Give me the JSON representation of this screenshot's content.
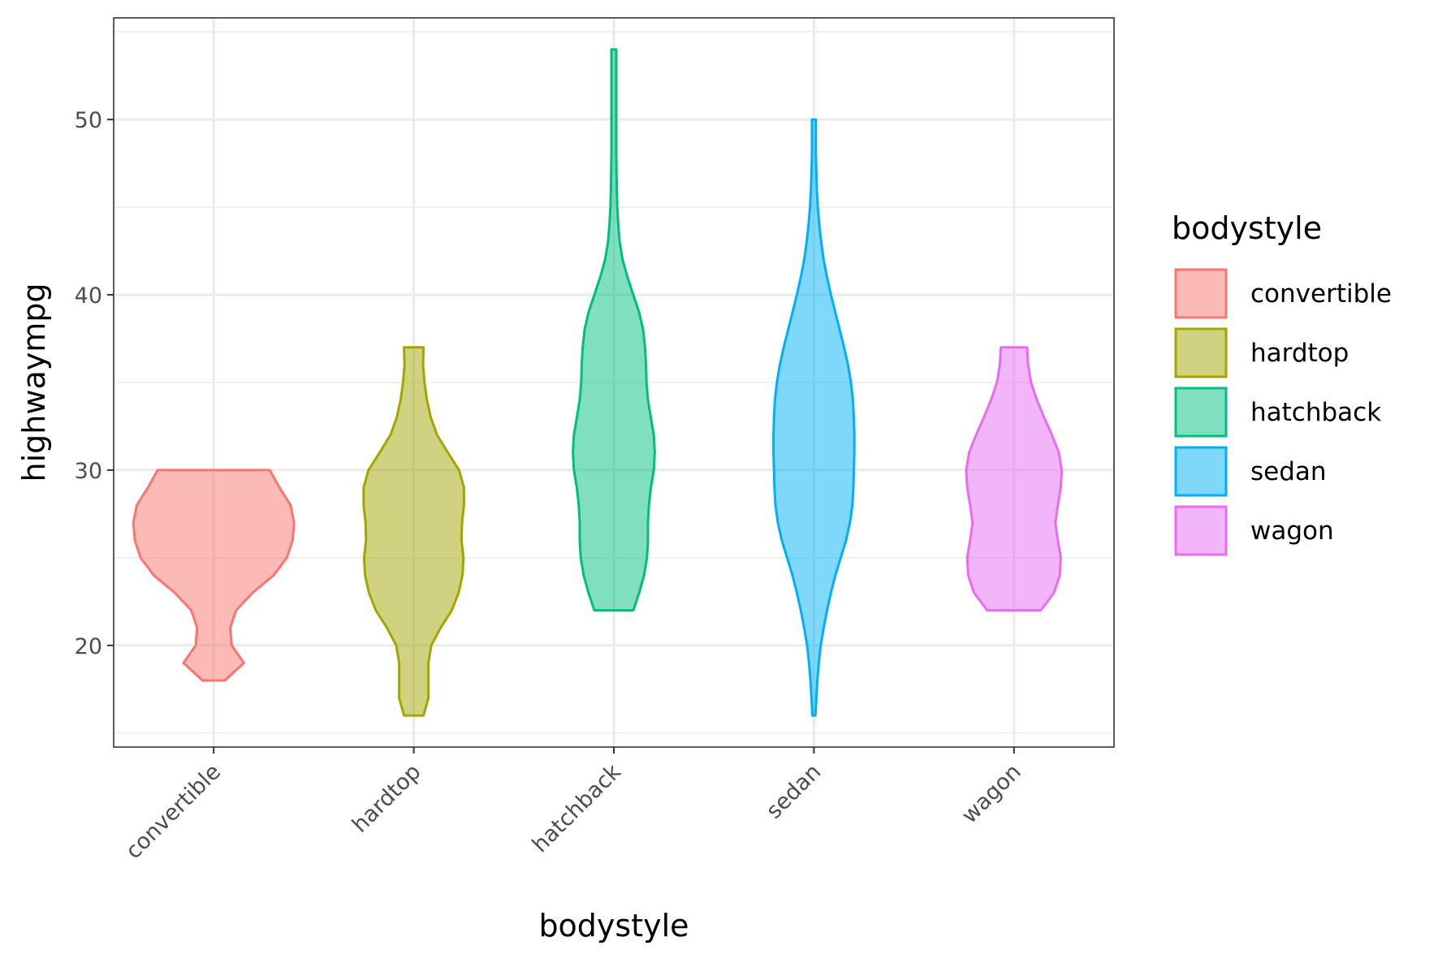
{
  "chart_data": {
    "type": "violin",
    "xlabel": "bodystyle",
    "ylabel": "highwaympg",
    "ylim": [
      14.2,
      55.8
    ],
    "yticks": [
      20,
      30,
      40,
      50
    ],
    "categories": [
      "convertible",
      "hardtop",
      "hatchback",
      "sedan",
      "wagon"
    ],
    "grid": true,
    "legend": {
      "title": "bodystyle",
      "position": "right",
      "entries": [
        "convertible",
        "hardtop",
        "hatchback",
        "sedan",
        "wagon"
      ]
    },
    "series": [
      {
        "category": "convertible",
        "color": "#F8766D",
        "range": [
          18,
          30
        ],
        "profile": [
          [
            18,
            0.23
          ],
          [
            19,
            0.62
          ],
          [
            20,
            0.37
          ],
          [
            21,
            0.34
          ],
          [
            22,
            0.46
          ],
          [
            23,
            0.8
          ],
          [
            24,
            1.23
          ],
          [
            25,
            1.5
          ],
          [
            26,
            1.62
          ],
          [
            27,
            1.65
          ],
          [
            28,
            1.58
          ],
          [
            29,
            1.35
          ],
          [
            30,
            1.15
          ]
        ]
      },
      {
        "category": "hardtop",
        "color": "#A3A500",
        "range": [
          16,
          37
        ],
        "profile": [
          [
            16,
            0.2
          ],
          [
            17,
            0.3
          ],
          [
            18,
            0.3
          ],
          [
            19,
            0.3
          ],
          [
            20,
            0.36
          ],
          [
            21,
            0.55
          ],
          [
            22,
            0.78
          ],
          [
            23,
            0.92
          ],
          [
            24,
            1.0
          ],
          [
            25,
            1.02
          ],
          [
            26,
            0.98
          ],
          [
            27,
            0.99
          ],
          [
            28,
            1.03
          ],
          [
            29,
            1.03
          ],
          [
            30,
            0.93
          ],
          [
            31,
            0.7
          ],
          [
            32,
            0.48
          ],
          [
            33,
            0.35
          ],
          [
            34,
            0.27
          ],
          [
            35,
            0.22
          ],
          [
            36,
            0.19
          ],
          [
            37,
            0.2
          ]
        ]
      },
      {
        "category": "hatchback",
        "color": "#00BF7D",
        "range": [
          22,
          54
        ],
        "profile": [
          [
            22,
            0.4
          ],
          [
            23,
            0.52
          ],
          [
            24,
            0.62
          ],
          [
            25,
            0.68
          ],
          [
            26,
            0.7
          ],
          [
            27,
            0.7
          ],
          [
            28,
            0.72
          ],
          [
            29,
            0.76
          ],
          [
            30,
            0.82
          ],
          [
            31,
            0.84
          ],
          [
            32,
            0.82
          ],
          [
            33,
            0.76
          ],
          [
            34,
            0.7
          ],
          [
            35,
            0.67
          ],
          [
            36,
            0.66
          ],
          [
            37,
            0.64
          ],
          [
            38,
            0.6
          ],
          [
            39,
            0.52
          ],
          [
            40,
            0.4
          ],
          [
            41,
            0.28
          ],
          [
            42,
            0.18
          ],
          [
            43,
            0.12
          ],
          [
            44,
            0.09
          ],
          [
            45,
            0.07
          ],
          [
            46,
            0.06
          ],
          [
            48,
            0.05
          ],
          [
            50,
            0.05
          ],
          [
            52,
            0.05
          ],
          [
            54,
            0.05
          ]
        ]
      },
      {
        "category": "sedan",
        "color": "#00B0F6",
        "range": [
          16,
          50
        ],
        "profile": [
          [
            16,
            0.03
          ],
          [
            17,
            0.05
          ],
          [
            18,
            0.07
          ],
          [
            19,
            0.1
          ],
          [
            20,
            0.14
          ],
          [
            21,
            0.2
          ],
          [
            22,
            0.27
          ],
          [
            23,
            0.35
          ],
          [
            24,
            0.44
          ],
          [
            25,
            0.55
          ],
          [
            26,
            0.66
          ],
          [
            27,
            0.74
          ],
          [
            28,
            0.79
          ],
          [
            29,
            0.81
          ],
          [
            30,
            0.82
          ],
          [
            31,
            0.83
          ],
          [
            32,
            0.83
          ],
          [
            33,
            0.82
          ],
          [
            34,
            0.8
          ],
          [
            35,
            0.76
          ],
          [
            36,
            0.7
          ],
          [
            37,
            0.62
          ],
          [
            38,
            0.53
          ],
          [
            39,
            0.44
          ],
          [
            40,
            0.35
          ],
          [
            41,
            0.27
          ],
          [
            42,
            0.2
          ],
          [
            43,
            0.15
          ],
          [
            44,
            0.11
          ],
          [
            45,
            0.08
          ],
          [
            46,
            0.06
          ],
          [
            47,
            0.05
          ],
          [
            48,
            0.04
          ],
          [
            49,
            0.04
          ],
          [
            50,
            0.04
          ]
        ]
      },
      {
        "category": "wagon",
        "color": "#E76BF3",
        "range": [
          22,
          37
        ],
        "profile": [
          [
            22,
            0.55
          ],
          [
            23,
            0.82
          ],
          [
            24,
            0.94
          ],
          [
            25,
            0.96
          ],
          [
            26,
            0.9
          ],
          [
            27,
            0.85
          ],
          [
            28,
            0.9
          ],
          [
            29,
            0.96
          ],
          [
            30,
            0.98
          ],
          [
            31,
            0.92
          ],
          [
            32,
            0.78
          ],
          [
            33,
            0.62
          ],
          [
            34,
            0.47
          ],
          [
            35,
            0.35
          ],
          [
            36,
            0.29
          ],
          [
            37,
            0.27
          ]
        ]
      }
    ]
  }
}
